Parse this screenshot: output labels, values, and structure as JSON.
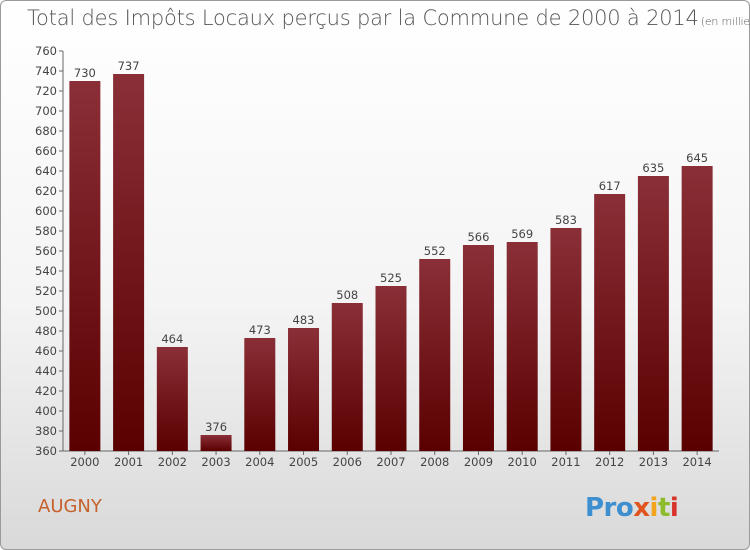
{
  "header": {
    "title": "Total des Impôts Locaux perçus par la Commune de 2000 à 2014",
    "unit": "(en milliers d'€)"
  },
  "footer": {
    "commune": "AUGNY",
    "logo": [
      "Pro",
      "x",
      "i",
      "t",
      "i"
    ]
  },
  "colors": {
    "bar_top": "#8a2f37",
    "bar_bottom": "#5a0000",
    "commune_text": "#c5612b"
  },
  "chart_data": {
    "type": "bar",
    "title": "Total des Impôts Locaux perçus par la Commune de 2000 à 2014",
    "subtitle": "(en milliers d'€)",
    "xlabel": "",
    "ylabel": "",
    "categories": [
      "2000",
      "2001",
      "2002",
      "2003",
      "2004",
      "2005",
      "2006",
      "2007",
      "2008",
      "2009",
      "2010",
      "2011",
      "2012",
      "2013",
      "2014"
    ],
    "values": [
      730,
      737,
      464,
      376,
      473,
      483,
      508,
      525,
      552,
      566,
      569,
      583,
      617,
      635,
      645
    ],
    "ylim": [
      360,
      760
    ],
    "ytick_step": 20,
    "grid": false,
    "legend": "none"
  }
}
